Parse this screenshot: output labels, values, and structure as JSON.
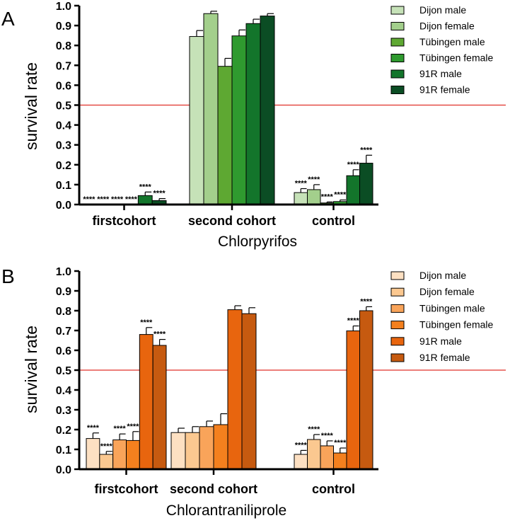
{
  "chart_data": [
    {
      "panel_label": "A",
      "type": "bar",
      "xlabel": "Chlorpyrifos",
      "ylabel": "survival rate",
      "ylim": [
        0,
        1
      ],
      "yticks": [
        "0.0",
        "0.1",
        "0.2",
        "0.3",
        "0.4",
        "0.5",
        "0.6",
        "0.7",
        "0.8",
        "0.9",
        "1.0"
      ],
      "categories": [
        "firstcohort",
        "second cohort",
        "control"
      ],
      "reference_line": 0.5,
      "legend_position": "top-right",
      "series": [
        {
          "name": "Dijon male",
          "color": "#c6e2b8",
          "values": [
            0.0,
            0.845,
            0.06
          ],
          "errors": [
            0.0,
            0.03,
            0.02
          ],
          "labels": [
            "****",
            "",
            "****"
          ]
        },
        {
          "name": "Dijon female",
          "color": "#a3cf8c",
          "values": [
            0.0,
            0.96,
            0.075
          ],
          "errors": [
            0.0,
            0.012,
            0.025
          ],
          "labels": [
            "****",
            "",
            "****"
          ]
        },
        {
          "name": "Tübingen male",
          "color": "#5ea832",
          "values": [
            0.0,
            0.695,
            0.008
          ],
          "errors": [
            0.0,
            0.04,
            0.005
          ],
          "labels": [
            "****",
            "",
            "****"
          ]
        },
        {
          "name": "Tübingen female",
          "color": "#2f9a2f",
          "values": [
            0.0,
            0.848,
            0.015
          ],
          "errors": [
            0.0,
            0.03,
            0.008
          ],
          "labels": [
            "****",
            "",
            "****"
          ]
        },
        {
          "name": "91R male",
          "color": "#13752b",
          "values": [
            0.045,
            0.91,
            0.145
          ],
          "errors": [
            0.018,
            0.022,
            0.03
          ],
          "labels": [
            "****",
            "",
            "****"
          ]
        },
        {
          "name": "91R female",
          "color": "#0b4d24",
          "values": [
            0.02,
            0.948,
            0.208
          ],
          "errors": [
            0.01,
            0.012,
            0.04
          ],
          "labels": [
            "****",
            "",
            "****"
          ]
        }
      ]
    },
    {
      "panel_label": "B",
      "type": "bar",
      "xlabel": "Chlorantraniliprole",
      "ylabel": "survival rate",
      "ylim": [
        0,
        1
      ],
      "yticks": [
        "0.0",
        "0.1",
        "0.2",
        "0.3",
        "0.4",
        "0.5",
        "0.6",
        "0.7",
        "0.8",
        "0.9",
        "1.0"
      ],
      "categories": [
        "firstcohort",
        "second cohort",
        "control"
      ],
      "reference_line": 0.5,
      "legend_position": "top-right",
      "series": [
        {
          "name": "Dijon male",
          "color": "#fde0c2",
          "values": [
            0.155,
            0.185,
            0.075
          ],
          "errors": [
            0.028,
            0.022,
            0.02
          ],
          "labels": [
            "****",
            "",
            "****"
          ]
        },
        {
          "name": "Dijon female",
          "color": "#fbc890",
          "values": [
            0.075,
            0.185,
            0.15
          ],
          "errors": [
            0.015,
            0.03,
            0.025
          ],
          "labels": [
            "****",
            "",
            "****"
          ]
        },
        {
          "name": "Tübingen male",
          "color": "#f9a45a",
          "values": [
            0.148,
            0.215,
            0.118
          ],
          "errors": [
            0.03,
            0.028,
            0.025
          ],
          "labels": [
            "****",
            "",
            "****"
          ]
        },
        {
          "name": "Tübingen female",
          "color": "#f4801e",
          "values": [
            0.145,
            0.225,
            0.082
          ],
          "errors": [
            0.045,
            0.055,
            0.025
          ],
          "labels": [
            "****",
            "",
            "****"
          ]
        },
        {
          "name": "91R male",
          "color": "#e8650e",
          "values": [
            0.68,
            0.805,
            0.698
          ],
          "errors": [
            0.035,
            0.02,
            0.025
          ],
          "labels": [
            "****",
            "",
            "****"
          ]
        },
        {
          "name": "91R female",
          "color": "#c65a10",
          "values": [
            0.625,
            0.785,
            0.8
          ],
          "errors": [
            0.03,
            0.03,
            0.02
          ],
          "labels": [
            "****",
            "",
            "****"
          ]
        }
      ]
    }
  ]
}
